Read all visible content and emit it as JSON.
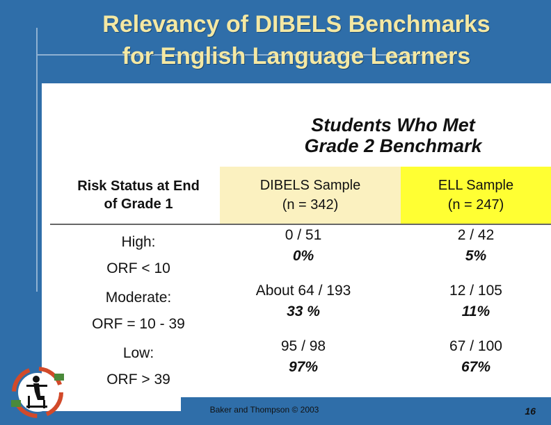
{
  "slide": {
    "title_line1": "Relevancy of DIBELS Benchmarks",
    "title_line2": "for English Language Learners"
  },
  "table": {
    "group_header_line1": "Students Who Met",
    "group_header_line2": "Grade 2 Benchmark",
    "headers": {
      "risk_line1": "Risk Status at End",
      "risk_line2": "of Grade 1",
      "dibels_line1": "DIBELS Sample",
      "dibels_line2": "(n = 342)",
      "ell_line1": "ELL Sample",
      "ell_line2": "(n = 247)"
    },
    "rows": [
      {
        "risk_line1": "High:",
        "risk_line2": "ORF < 10",
        "dibels_count": "0 / 51",
        "dibels_pct": "0%",
        "ell_count": "2 / 42",
        "ell_pct": "5%"
      },
      {
        "risk_line1": "Moderate:",
        "risk_line2": "ORF = 10 - 39",
        "dibels_count": "About 64 / 193",
        "dibels_pct": "33 %",
        "ell_count": "12 / 105",
        "ell_pct": "11%"
      },
      {
        "risk_line1": "Low:",
        "risk_line2": "ORF > 39",
        "dibels_count": "95 / 98",
        "dibels_pct": "97%",
        "ell_count": "67 / 100",
        "ell_pct": "67%"
      }
    ]
  },
  "footer": {
    "citation": "Baker and Thompson © 2003",
    "page_number": "16"
  },
  "colors": {
    "background": "#2f6ea9",
    "title": "#f4e8a3",
    "dibels_header": "#fbf1c0",
    "ell_header": "#ffff33"
  },
  "icons": {
    "logo": "reading-student-cycle-logo"
  }
}
